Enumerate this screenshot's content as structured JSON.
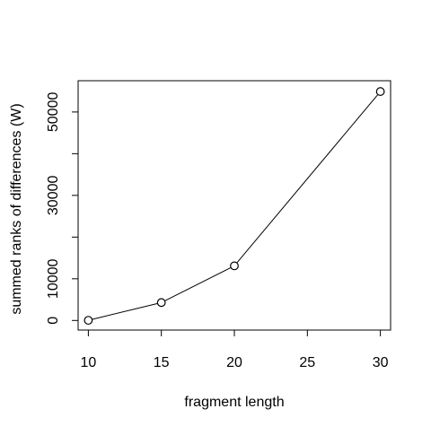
{
  "chart_data": {
    "type": "line",
    "title": "",
    "xlabel": "fragment length",
    "ylabel": "summed ranks of differences (W)",
    "x": [
      10,
      15,
      20,
      30
    ],
    "y": [
      40,
      4300,
      13100,
      54900
    ],
    "xlim": [
      9.3,
      30.7
    ],
    "ylim": [
      -2300,
      57500
    ],
    "x_ticks": [
      10,
      15,
      20,
      25,
      30
    ],
    "y_ticks": [
      0,
      10000,
      20000,
      30000,
      40000,
      50000
    ],
    "y_tick_labels": [
      "0",
      "10000",
      "",
      "30000",
      "",
      "50000"
    ],
    "grid": false,
    "legend": "none",
    "marker": "open-circle",
    "line_color": "#000000"
  }
}
